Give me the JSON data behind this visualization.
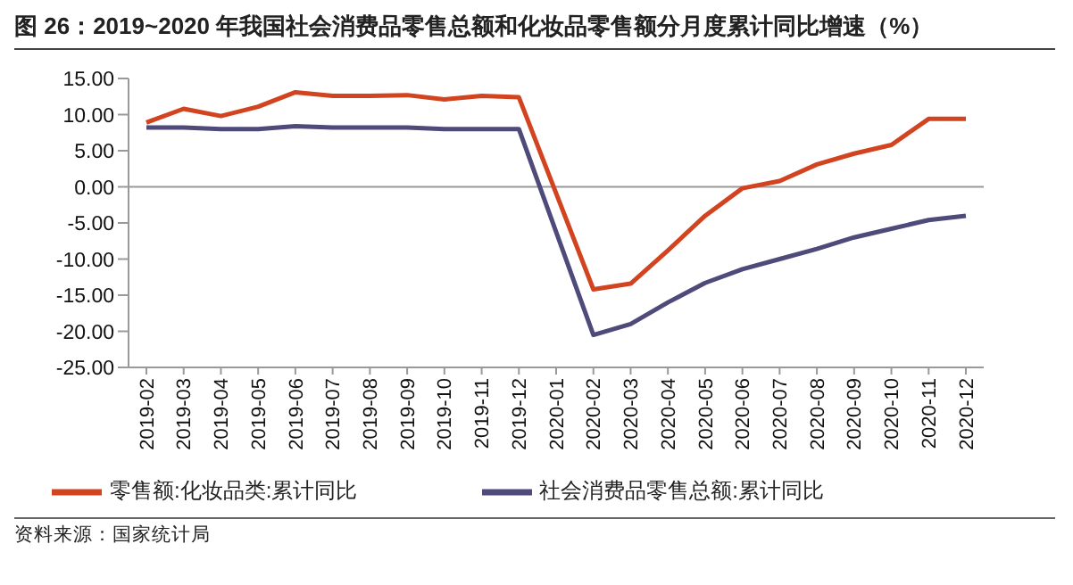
{
  "chart_data": {
    "type": "line",
    "title": "图 26：2019~2020 年我国社会消费品零售总额和化妆品零售额分月度累计同比增速（%）",
    "categories": [
      "2019-02",
      "2019-03",
      "2019-04",
      "2019-05",
      "2019-06",
      "2019-07",
      "2019-08",
      "2019-09",
      "2019-10",
      "2019-11",
      "2019-12",
      "2020-01",
      "2020-02",
      "2020-03",
      "2020-04",
      "2020-05",
      "2020-06",
      "2020-07",
      "2020-08",
      "2020-09",
      "2020-10",
      "2020-11",
      "2020-12"
    ],
    "series": [
      {
        "name": "零售额:化妆品类:累计同比",
        "color": "#d2431f",
        "values": [
          8.9,
          10.8,
          9.8,
          11.1,
          13.1,
          12.6,
          12.6,
          12.7,
          12.1,
          12.6,
          12.4,
          null,
          -14.2,
          -13.4,
          -8.8,
          -4.0,
          -0.2,
          0.8,
          3.1,
          4.6,
          5.8,
          9.4,
          9.4
        ]
      },
      {
        "name": "社会消费品零售总额:累计同比",
        "color": "#4e4a7a",
        "values": [
          8.2,
          8.2,
          8.0,
          8.0,
          8.4,
          8.2,
          8.2,
          8.2,
          8.0,
          8.0,
          8.0,
          null,
          -20.5,
          -19.0,
          -16.0,
          -13.3,
          -11.4,
          -10.0,
          -8.6,
          -7.0,
          -5.8,
          -4.6,
          -4.0
        ]
      }
    ],
    "ylim": [
      -25,
      15
    ],
    "yticks": [
      {
        "value": -25,
        "label": "-25.00"
      },
      {
        "value": -20,
        "label": "-20.00"
      },
      {
        "value": -15,
        "label": "-15.00"
      },
      {
        "value": -10,
        "label": "-10.00"
      },
      {
        "value": -5,
        "label": "-5.00"
      },
      {
        "value": 0,
        "label": "0.00"
      },
      {
        "value": 5,
        "label": "5.00"
      },
      {
        "value": 10,
        "label": "10.00"
      },
      {
        "value": 15,
        "label": "15.00"
      }
    ],
    "ref_lines": [
      {
        "axis": "y",
        "value": 0,
        "color": "#999999"
      }
    ],
    "grid": false,
    "legend": "bottom",
    "marker": "none",
    "line_style": "solid",
    "annotations": [
      "资料来源：国家统计局"
    ]
  }
}
